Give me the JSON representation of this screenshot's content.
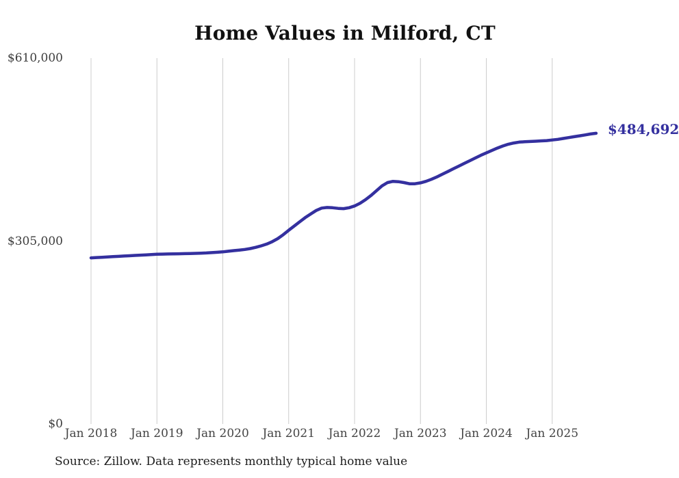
{
  "page": {
    "source": "Source: Zillow. Data represents monthly typical home value"
  },
  "chart_data": {
    "type": "line",
    "title": "Home Values in Milford, CT",
    "xlabel": "",
    "ylabel": "",
    "ylim": [
      0,
      610000
    ],
    "grid": "vertical-only",
    "legend": "none",
    "line_color": "#34309f",
    "grid_color": "#cccccc",
    "end_label": "$484,692",
    "end_value": 484692,
    "y_ticks": [
      {
        "label": "$0",
        "value": 0
      },
      {
        "label": "$305,000",
        "value": 305000
      },
      {
        "label": "$610,000",
        "value": 610000
      }
    ],
    "x_ticks": [
      "Jan 2018",
      "Jan 2019",
      "Jan 2020",
      "Jan 2021",
      "Jan 2022",
      "Jan 2023",
      "Jan 2024",
      "Jan 2025"
    ],
    "series_start": "Jan 2018",
    "series_interval": "monthly",
    "values": [
      277000,
      277500,
      278000,
      278500,
      279000,
      279500,
      280000,
      280500,
      281000,
      281500,
      282000,
      282500,
      283000,
      283200,
      283400,
      283600,
      283800,
      284000,
      284200,
      284500,
      284800,
      285200,
      285700,
      286300,
      287000,
      288000,
      289000,
      290000,
      291000,
      292500,
      294500,
      297000,
      300000,
      304000,
      309000,
      315500,
      323000,
      330000,
      337000,
      344000,
      350000,
      356000,
      360000,
      361000,
      360500,
      359500,
      359000,
      360500,
      363500,
      368000,
      374000,
      381000,
      389000,
      397000,
      402500,
      404500,
      404000,
      402500,
      400500,
      400500,
      402000,
      404500,
      408000,
      412000,
      416500,
      421000,
      425500,
      430000,
      434500,
      439000,
      443500,
      448000,
      452000,
      456000,
      460000,
      463500,
      466500,
      468500,
      470000,
      470500,
      471000,
      471500,
      472000,
      472500,
      473500,
      474500,
      476000,
      477500,
      479000,
      480500,
      482000,
      483500,
      484692
    ]
  }
}
